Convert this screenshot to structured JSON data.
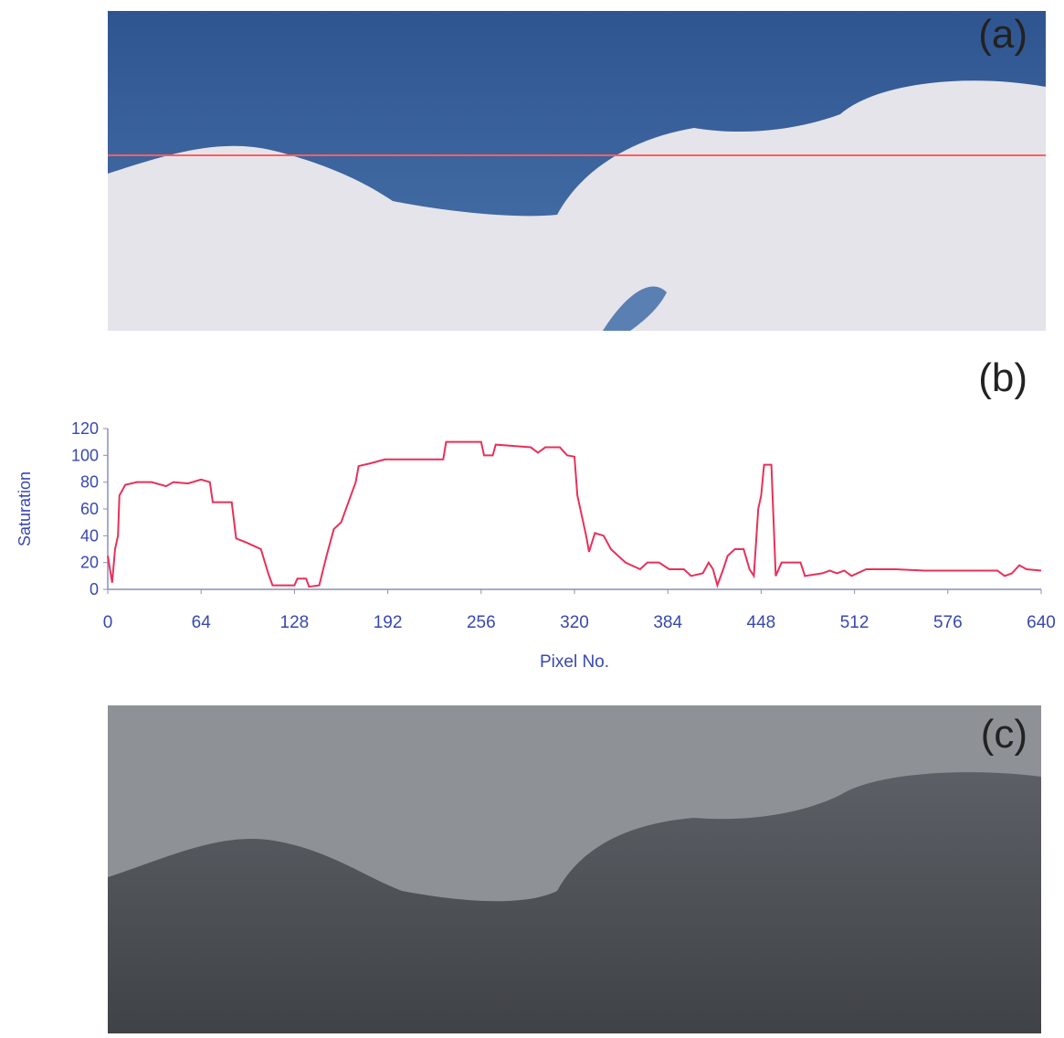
{
  "panel_labels": [
    "(a)",
    "(b)",
    "(c)"
  ],
  "chart_data": {
    "type": "line",
    "ylabel": "Saturation",
    "xlabel": "Pixel No.",
    "color": "#e8305a",
    "xlim": [
      0,
      640
    ],
    "xticks": [
      0,
      64,
      128,
      192,
      256,
      320,
      384,
      448,
      512,
      576,
      640
    ],
    "ylim": [
      0,
      120
    ],
    "yticks": [
      0,
      20,
      40,
      60,
      80,
      100,
      120
    ],
    "x": [
      0,
      3,
      5,
      7,
      8,
      12,
      20,
      30,
      40,
      45,
      55,
      64,
      70,
      72,
      85,
      88,
      95,
      105,
      110,
      113,
      128,
      130,
      136,
      138,
      145,
      150,
      155,
      160,
      170,
      172,
      180,
      190,
      230,
      232,
      256,
      258,
      264,
      266,
      290,
      295,
      300,
      310,
      315,
      320,
      322,
      328,
      330,
      334,
      340,
      345,
      350,
      355,
      365,
      370,
      378,
      385,
      395,
      400,
      408,
      412,
      415,
      418,
      422,
      425,
      430,
      436,
      440,
      443,
      446,
      448,
      450,
      455,
      458,
      462,
      475,
      478,
      490,
      495,
      500,
      505,
      510,
      520,
      540,
      560,
      610,
      615,
      620,
      625,
      630,
      640
    ],
    "values": [
      25,
      5,
      30,
      40,
      70,
      78,
      80,
      80,
      77,
      80,
      79,
      82,
      80,
      65,
      65,
      38,
      35,
      30,
      12,
      3,
      3,
      8,
      8,
      2,
      3,
      25,
      45,
      50,
      80,
      92,
      94,
      97,
      97,
      110,
      110,
      100,
      100,
      108,
      106,
      102,
      106,
      106,
      100,
      99,
      70,
      40,
      28,
      42,
      40,
      30,
      25,
      20,
      15,
      20,
      20,
      15,
      15,
      10,
      12,
      20,
      15,
      3,
      15,
      25,
      30,
      30,
      15,
      10,
      60,
      70,
      93,
      93,
      10,
      20,
      20,
      10,
      12,
      14,
      12,
      14,
      10,
      15,
      15,
      14,
      14,
      10,
      12,
      18,
      15,
      14
    ]
  }
}
